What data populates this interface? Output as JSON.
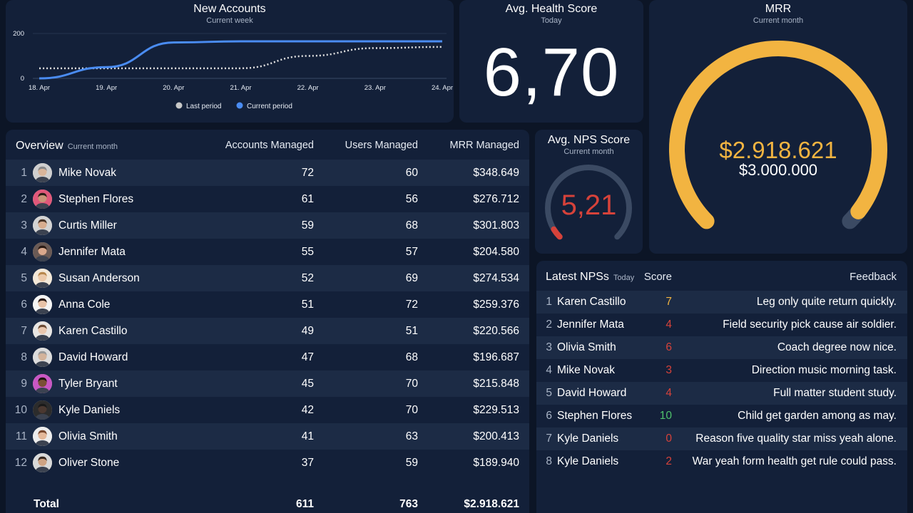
{
  "new_accounts": {
    "title": "New Accounts",
    "subtitle": "Current week",
    "y_ticks": [
      "200",
      "0"
    ],
    "x_ticks": [
      "18. Apr",
      "19. Apr",
      "20. Apr",
      "21. Apr",
      "22. Apr",
      "23. Apr",
      "24. Apr"
    ],
    "legend": [
      {
        "label": "Last period",
        "color": "#c8c8c8"
      },
      {
        "label": "Current period",
        "color": "#4a8cf2"
      }
    ]
  },
  "chart_data": {
    "type": "line",
    "title": "New Accounts",
    "subtitle": "Current week",
    "x": [
      "18. Apr",
      "19. Apr",
      "20. Apr",
      "21. Apr",
      "22. Apr",
      "23. Apr",
      "24. Apr"
    ],
    "ylim": [
      0,
      200
    ],
    "series": [
      {
        "name": "Current period",
        "values": [
          0,
          50,
          160,
          165,
          165,
          165,
          165
        ]
      },
      {
        "name": "Last period",
        "values": [
          45,
          45,
          45,
          45,
          100,
          135,
          140
        ]
      }
    ]
  },
  "health": {
    "title": "Avg. Health Score",
    "subtitle": "Today",
    "value": "6,70"
  },
  "mrr": {
    "title": "MRR",
    "subtitle": "Current month",
    "value": "$2.918.621",
    "target": "$3.000.000",
    "fraction": 0.973,
    "color": "#f2b441"
  },
  "nps": {
    "title": "Avg. NPS Score",
    "subtitle": "Current month",
    "value": "5,21",
    "fraction": 0.05,
    "color": "#d6423a"
  },
  "overview": {
    "title": "Overview",
    "subtitle": "Current month",
    "columns": [
      "Accounts Managed",
      "Users Managed",
      "MRR Managed"
    ],
    "rows": [
      {
        "rank": "1",
        "name": "Mike Novak",
        "accounts": "72",
        "users": "60",
        "mrr": "$348.649",
        "hair": "#8a8a8a",
        "skin": "#d9b59a",
        "bg": "#cfcfcf"
      },
      {
        "rank": "2",
        "name": "Stephen Flores",
        "accounts": "61",
        "users": "56",
        "mrr": "$276.712",
        "hair": "#2b1d16",
        "skin": "#c99478",
        "bg": "#e0587a"
      },
      {
        "rank": "3",
        "name": "Curtis Miller",
        "accounts": "59",
        "users": "68",
        "mrr": "$301.803",
        "hair": "#4a3528",
        "skin": "#d8ad8f",
        "bg": "#d3d3d3"
      },
      {
        "rank": "4",
        "name": "Jennifer Mata",
        "accounts": "55",
        "users": "57",
        "mrr": "$204.580",
        "hair": "#2a1a14",
        "skin": "#d9a88c",
        "bg": "#6a5a55"
      },
      {
        "rank": "5",
        "name": "Susan Anderson",
        "accounts": "52",
        "users": "69",
        "mrr": "$274.534",
        "hair": "#b8874c",
        "skin": "#ecc9a9",
        "bg": "#f3e8d8"
      },
      {
        "rank": "6",
        "name": "Anna Cole",
        "accounts": "51",
        "users": "72",
        "mrr": "$259.376",
        "hair": "#2a1a14",
        "skin": "#e8c3a8",
        "bg": "#f4f4f4"
      },
      {
        "rank": "7",
        "name": "Karen Castillo",
        "accounts": "49",
        "users": "51",
        "mrr": "$220.566",
        "hair": "#6b4a33",
        "skin": "#eac7ad",
        "bg": "#e9e6e3"
      },
      {
        "rank": "8",
        "name": "David Howard",
        "accounts": "47",
        "users": "68",
        "mrr": "$196.687",
        "hair": "#9a9a9a",
        "skin": "#d3b39b",
        "bg": "#dcdcdc"
      },
      {
        "rank": "9",
        "name": "Tyler Bryant",
        "accounts": "45",
        "users": "70",
        "mrr": "$215.848",
        "hair": "#1e1410",
        "skin": "#7a4f36",
        "bg": "#c957c4"
      },
      {
        "rank": "10",
        "name": "Kyle Daniels",
        "accounts": "42",
        "users": "70",
        "mrr": "$229.513",
        "hair": "#1a1a1a",
        "skin": "#4a3830",
        "bg": "#2c2c2c"
      },
      {
        "rank": "11",
        "name": "Olivia Smith",
        "accounts": "41",
        "users": "63",
        "mrr": "$200.413",
        "hair": "#7a4a30",
        "skin": "#e4b99b",
        "bg": "#ededed"
      },
      {
        "rank": "12",
        "name": "Oliver Stone",
        "accounts": "37",
        "users": "59",
        "mrr": "$189.940",
        "hair": "#3a2a20",
        "skin": "#cfa383",
        "bg": "#d9d9d9"
      }
    ],
    "total": {
      "label": "Total",
      "accounts": "611",
      "users": "763",
      "mrr": "$2.918.621"
    }
  },
  "latest_nps": {
    "title": "Latest NPSs",
    "subtitle": "Today",
    "score_label": "Score",
    "feedback_label": "Feedback",
    "rows": [
      {
        "rank": "1",
        "name": "Karen Castillo",
        "score": "7",
        "score_color": "#f2b441",
        "feedback": "Leg only quite return quickly."
      },
      {
        "rank": "2",
        "name": "Jennifer Mata",
        "score": "4",
        "score_color": "#d6423a",
        "feedback": "Field security pick cause air soldier."
      },
      {
        "rank": "3",
        "name": "Olivia Smith",
        "score": "6",
        "score_color": "#d6423a",
        "feedback": "Coach degree now nice."
      },
      {
        "rank": "4",
        "name": "Mike Novak",
        "score": "3",
        "score_color": "#d6423a",
        "feedback": "Direction music morning task."
      },
      {
        "rank": "5",
        "name": "David Howard",
        "score": "4",
        "score_color": "#d6423a",
        "feedback": "Full matter student study."
      },
      {
        "rank": "6",
        "name": "Stephen Flores",
        "score": "10",
        "score_color": "#4fc26b",
        "feedback": "Child get garden among as may."
      },
      {
        "rank": "7",
        "name": "Kyle Daniels",
        "score": "0",
        "score_color": "#d6423a",
        "feedback": "Reason five quality star miss yeah alone."
      },
      {
        "rank": "8",
        "name": "Kyle Daniels",
        "score": "2",
        "score_color": "#d6423a",
        "feedback": "War yeah form health get rule could pass."
      }
    ]
  }
}
